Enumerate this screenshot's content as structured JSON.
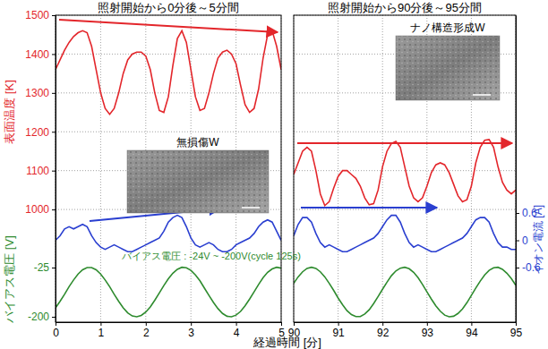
{
  "chart_data": {
    "type": "line",
    "xlabel": "経過時間 [分]",
    "ylabel": "表面温度 [K]",
    "y2label": "イオン電流 [A]",
    "y3label": "バイアス電圧 [V]",
    "ylim": [
      710,
      1500
    ],
    "yticks": [
      1000,
      1100,
      1200,
      1300,
      1400,
      1500
    ],
    "y2lim": [
      -1.8,
      4.95
    ],
    "y2ticks": [
      -0.6,
      0,
      0.6
    ],
    "y3lim": [
      -219,
      872
    ],
    "y3ticks": [
      -200,
      -25
    ],
    "grid": true,
    "annotations": [
      "無損傷W",
      "ナノ構造形成W",
      "バイアス電圧 : -24V ~ -200V(cycle 125s)"
    ],
    "panels": [
      {
        "title": "照射開始から0分後～5分間",
        "xlim": [
          0,
          5
        ],
        "xticks": [
          0,
          1,
          2,
          3,
          4,
          5
        ],
        "x": [
          0,
          0.1,
          0.2,
          0.3,
          0.4,
          0.5,
          0.6,
          0.7,
          0.8,
          0.9,
          1,
          1.1,
          1.2,
          1.3,
          1.4,
          1.5,
          1.6,
          1.7,
          1.8,
          1.9,
          2,
          2.1,
          2.2,
          2.3,
          2.4,
          2.5,
          2.6,
          2.7,
          2.8,
          2.9,
          3,
          3.1,
          3.2,
          3.3,
          3.4,
          3.5,
          3.6,
          3.7,
          3.8,
          3.9,
          4,
          4.1,
          4.2,
          4.3,
          4.4,
          4.5,
          4.6,
          4.7,
          4.8,
          4.9,
          5
        ],
        "series": [
          {
            "color": "#e3262b",
            "axis": "y",
            "values": [
              1360,
              1385,
              1410,
              1430,
              1445,
              1455,
              1460,
              1455,
              1420,
              1360,
              1300,
              1260,
              1245,
              1260,
              1300,
              1350,
              1385,
              1400,
              1405,
              1405,
              1395,
              1360,
              1300,
              1255,
              1250,
              1290,
              1370,
              1440,
              1460,
              1430,
              1360,
              1290,
              1255,
              1260,
              1300,
              1350,
              1390,
              1405,
              1410,
              1400,
              1375,
              1320,
              1270,
              1250,
              1260,
              1310,
              1390,
              1450,
              1460,
              1420,
              1360
            ]
          },
          {
            "color": "#2a3fd0",
            "axis": "y2",
            "values": [
              0,
              0.1,
              0.25,
              0.3,
              0.25,
              0.3,
              0.35,
              0.3,
              0.1,
              -0.05,
              -0.15,
              -0.2,
              -0.15,
              -0.1,
              -0.15,
              -0.2,
              -0.25,
              -0.25,
              -0.2,
              -0.15,
              -0.1,
              -0.05,
              0,
              0.05,
              0.2,
              0.4,
              0.5,
              0.55,
              0.5,
              0.3,
              0.05,
              -0.1,
              -0.15,
              -0.1,
              -0.05,
              -0.1,
              -0.2,
              -0.25,
              -0.25,
              -0.2,
              -0.1,
              -0.05,
              0,
              0.05,
              0.15,
              0.3,
              0.4,
              0.45,
              0.4,
              0.2,
              0
            ]
          },
          {
            "color": "#2e8b2e",
            "axis": "y3",
            "values": [
              -168,
              -145,
              -120,
              -93,
              -69,
              -48,
              -33,
              -25,
              -25,
              -33,
              -48,
              -69,
              -93,
              -120,
              -145,
              -168,
              -186,
              -197,
              -200,
              -195,
              -183,
              -165,
              -141,
              -115,
              -89,
              -65,
              -45,
              -31,
              -24,
              -26,
              -35,
              -51,
              -72,
              -98,
              -124,
              -149,
              -171,
              -188,
              -198,
              -200,
              -194,
              -181,
              -161,
              -137,
              -111,
              -85,
              -61,
              -42,
              -30,
              -24,
              -27
            ]
          }
        ]
      },
      {
        "title": "照射開始から90分後～95分間",
        "xlim": [
          90,
          95
        ],
        "xticks": [
          90,
          91,
          92,
          93,
          94,
          95
        ],
        "x": [
          90,
          90.1,
          90.2,
          90.3,
          90.4,
          90.5,
          90.6,
          90.7,
          90.8,
          90.9,
          91,
          91.1,
          91.2,
          91.3,
          91.4,
          91.5,
          91.6,
          91.7,
          91.8,
          91.9,
          92,
          92.1,
          92.2,
          92.3,
          92.4,
          92.5,
          92.6,
          92.7,
          92.8,
          92.9,
          93,
          93.1,
          93.2,
          93.3,
          93.4,
          93.5,
          93.6,
          93.7,
          93.8,
          93.9,
          94,
          94.1,
          94.2,
          94.3,
          94.4,
          94.5,
          94.6,
          94.7,
          94.8,
          94.9,
          95
        ],
        "series": [
          {
            "color": "#e3262b",
            "axis": "y",
            "values": [
              1090,
              1120,
              1150,
              1160,
              1150,
              1100,
              1040,
              1010,
              1020,
              1055,
              1085,
              1100,
              1100,
              1090,
              1080,
              1060,
              1030,
              1012,
              1015,
              1050,
              1110,
              1150,
              1170,
              1175,
              1160,
              1110,
              1060,
              1030,
              1020,
              1030,
              1060,
              1095,
              1115,
              1120,
              1115,
              1095,
              1065,
              1035,
              1020,
              1025,
              1060,
              1120,
              1160,
              1178,
              1180,
              1160,
              1110,
              1070,
              1050,
              1040,
              1050
            ]
          },
          {
            "color": "#2a3fd0",
            "axis": "y2",
            "values": [
              0.1,
              0.35,
              0.5,
              0.5,
              0.4,
              0.15,
              -0.05,
              -0.15,
              -0.1,
              -0.15,
              -0.2,
              -0.25,
              -0.25,
              -0.2,
              -0.15,
              -0.1,
              -0.05,
              0,
              0.05,
              0.15,
              0.3,
              0.45,
              0.55,
              0.55,
              0.4,
              0.15,
              -0.05,
              -0.15,
              -0.1,
              -0.15,
              -0.2,
              -0.25,
              -0.25,
              -0.2,
              -0.15,
              -0.1,
              -0.05,
              0,
              0.05,
              0.15,
              0.3,
              0.45,
              0.5,
              0.5,
              0.4,
              0.15,
              -0.05,
              -0.15,
              -0.15,
              -0.2,
              -0.2
            ]
          },
          {
            "color": "#2e8b2e",
            "axis": "y3",
            "values": [
              -81,
              -58,
              -40,
              -28,
              -24,
              -28,
              -40,
              -58,
              -81,
              -106,
              -133,
              -157,
              -178,
              -192,
              -199,
              -199,
              -190,
              -175,
              -153,
              -128,
              -102,
              -77,
              -54,
              -37,
              -27,
              -24,
              -29,
              -42,
              -61,
              -85,
              -111,
              -137,
              -161,
              -180,
              -194,
              -200,
              -198,
              -188,
              -172,
              -150,
              -124,
              -98,
              -73,
              -51,
              -35,
              -26,
              -24,
              -31,
              -45,
              -64,
              -88
            ]
          }
        ]
      }
    ]
  }
}
